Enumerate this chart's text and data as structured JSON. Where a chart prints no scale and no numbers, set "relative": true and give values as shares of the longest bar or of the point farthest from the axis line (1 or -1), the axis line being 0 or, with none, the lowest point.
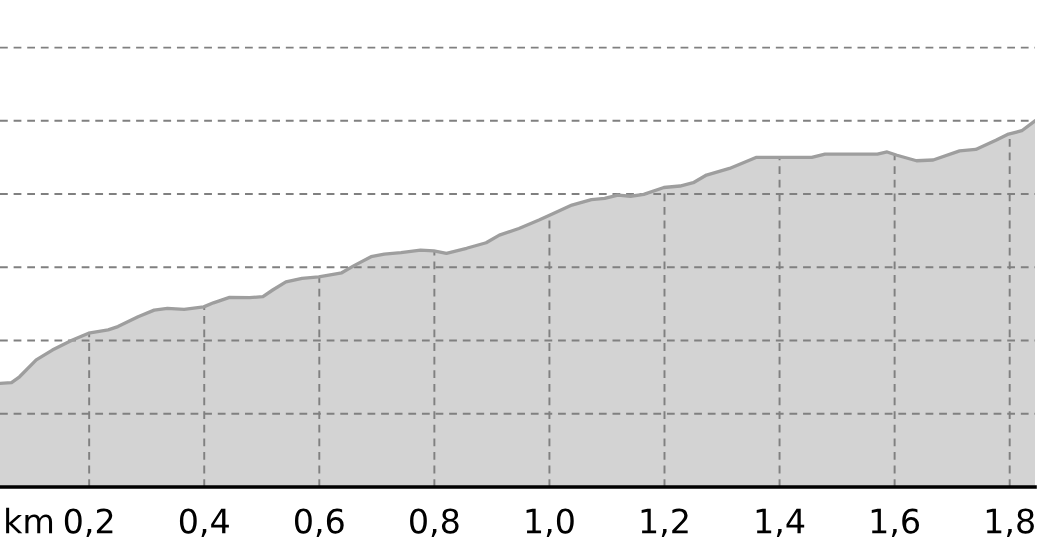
{
  "chart_data": {
    "type": "area",
    "xlabel": "km",
    "relative": true,
    "grid": true,
    "x": [
      0.045,
      0.065,
      0.079,
      0.108,
      0.136,
      0.17,
      0.199,
      0.233,
      0.25,
      0.285,
      0.313,
      0.336,
      0.365,
      0.399,
      0.416,
      0.444,
      0.479,
      0.502,
      0.519,
      0.542,
      0.57,
      0.599,
      0.639,
      0.662,
      0.69,
      0.713,
      0.742,
      0.776,
      0.799,
      0.821,
      0.856,
      0.89,
      0.913,
      0.947,
      0.982,
      1.004,
      1.039,
      1.073,
      1.096,
      1.119,
      1.141,
      1.164,
      1.199,
      1.227,
      1.25,
      1.273,
      1.313,
      1.359,
      1.399,
      1.456,
      1.479,
      1.57,
      1.587,
      1.604,
      1.638,
      1.667,
      1.713,
      1.741,
      1.776,
      1.798,
      1.821,
      1.844
    ],
    "series": [
      {
        "color": "#d3d3d3",
        "values": [
          0.283,
          0.285,
          0.301,
          0.347,
          0.374,
          0.401,
          0.42,
          0.429,
          0.438,
          0.465,
          0.483,
          0.488,
          0.485,
          0.492,
          0.503,
          0.518,
          0.517,
          0.52,
          0.538,
          0.56,
          0.57,
          0.574,
          0.585,
          0.606,
          0.629,
          0.636,
          0.64,
          0.647,
          0.645,
          0.638,
          0.652,
          0.667,
          0.688,
          0.706,
          0.729,
          0.745,
          0.77,
          0.785,
          0.788,
          0.797,
          0.794,
          0.799,
          0.818,
          0.822,
          0.831,
          0.852,
          0.87,
          0.9,
          0.9,
          0.9,
          0.909,
          0.909,
          0.915,
          0.906,
          0.891,
          0.893,
          0.918,
          0.922,
          0.947,
          0.964,
          0.973,
          1.0
        ]
      }
    ],
    "xlim": [
      0.045,
      1.844
    ],
    "xticks": [
      {
        "value": 0.2,
        "label": "0,2"
      },
      {
        "value": 0.4,
        "label": "0,4"
      },
      {
        "value": 0.6,
        "label": "0,6"
      },
      {
        "value": 0.8,
        "label": "0,8"
      },
      {
        "value": 1.0,
        "label": "1,0"
      },
      {
        "value": 1.2,
        "label": "1,2"
      },
      {
        "value": 1.4,
        "label": "1,4"
      },
      {
        "value": 1.6,
        "label": "1,6"
      },
      {
        "value": 1.8,
        "label": "1,8"
      }
    ]
  }
}
